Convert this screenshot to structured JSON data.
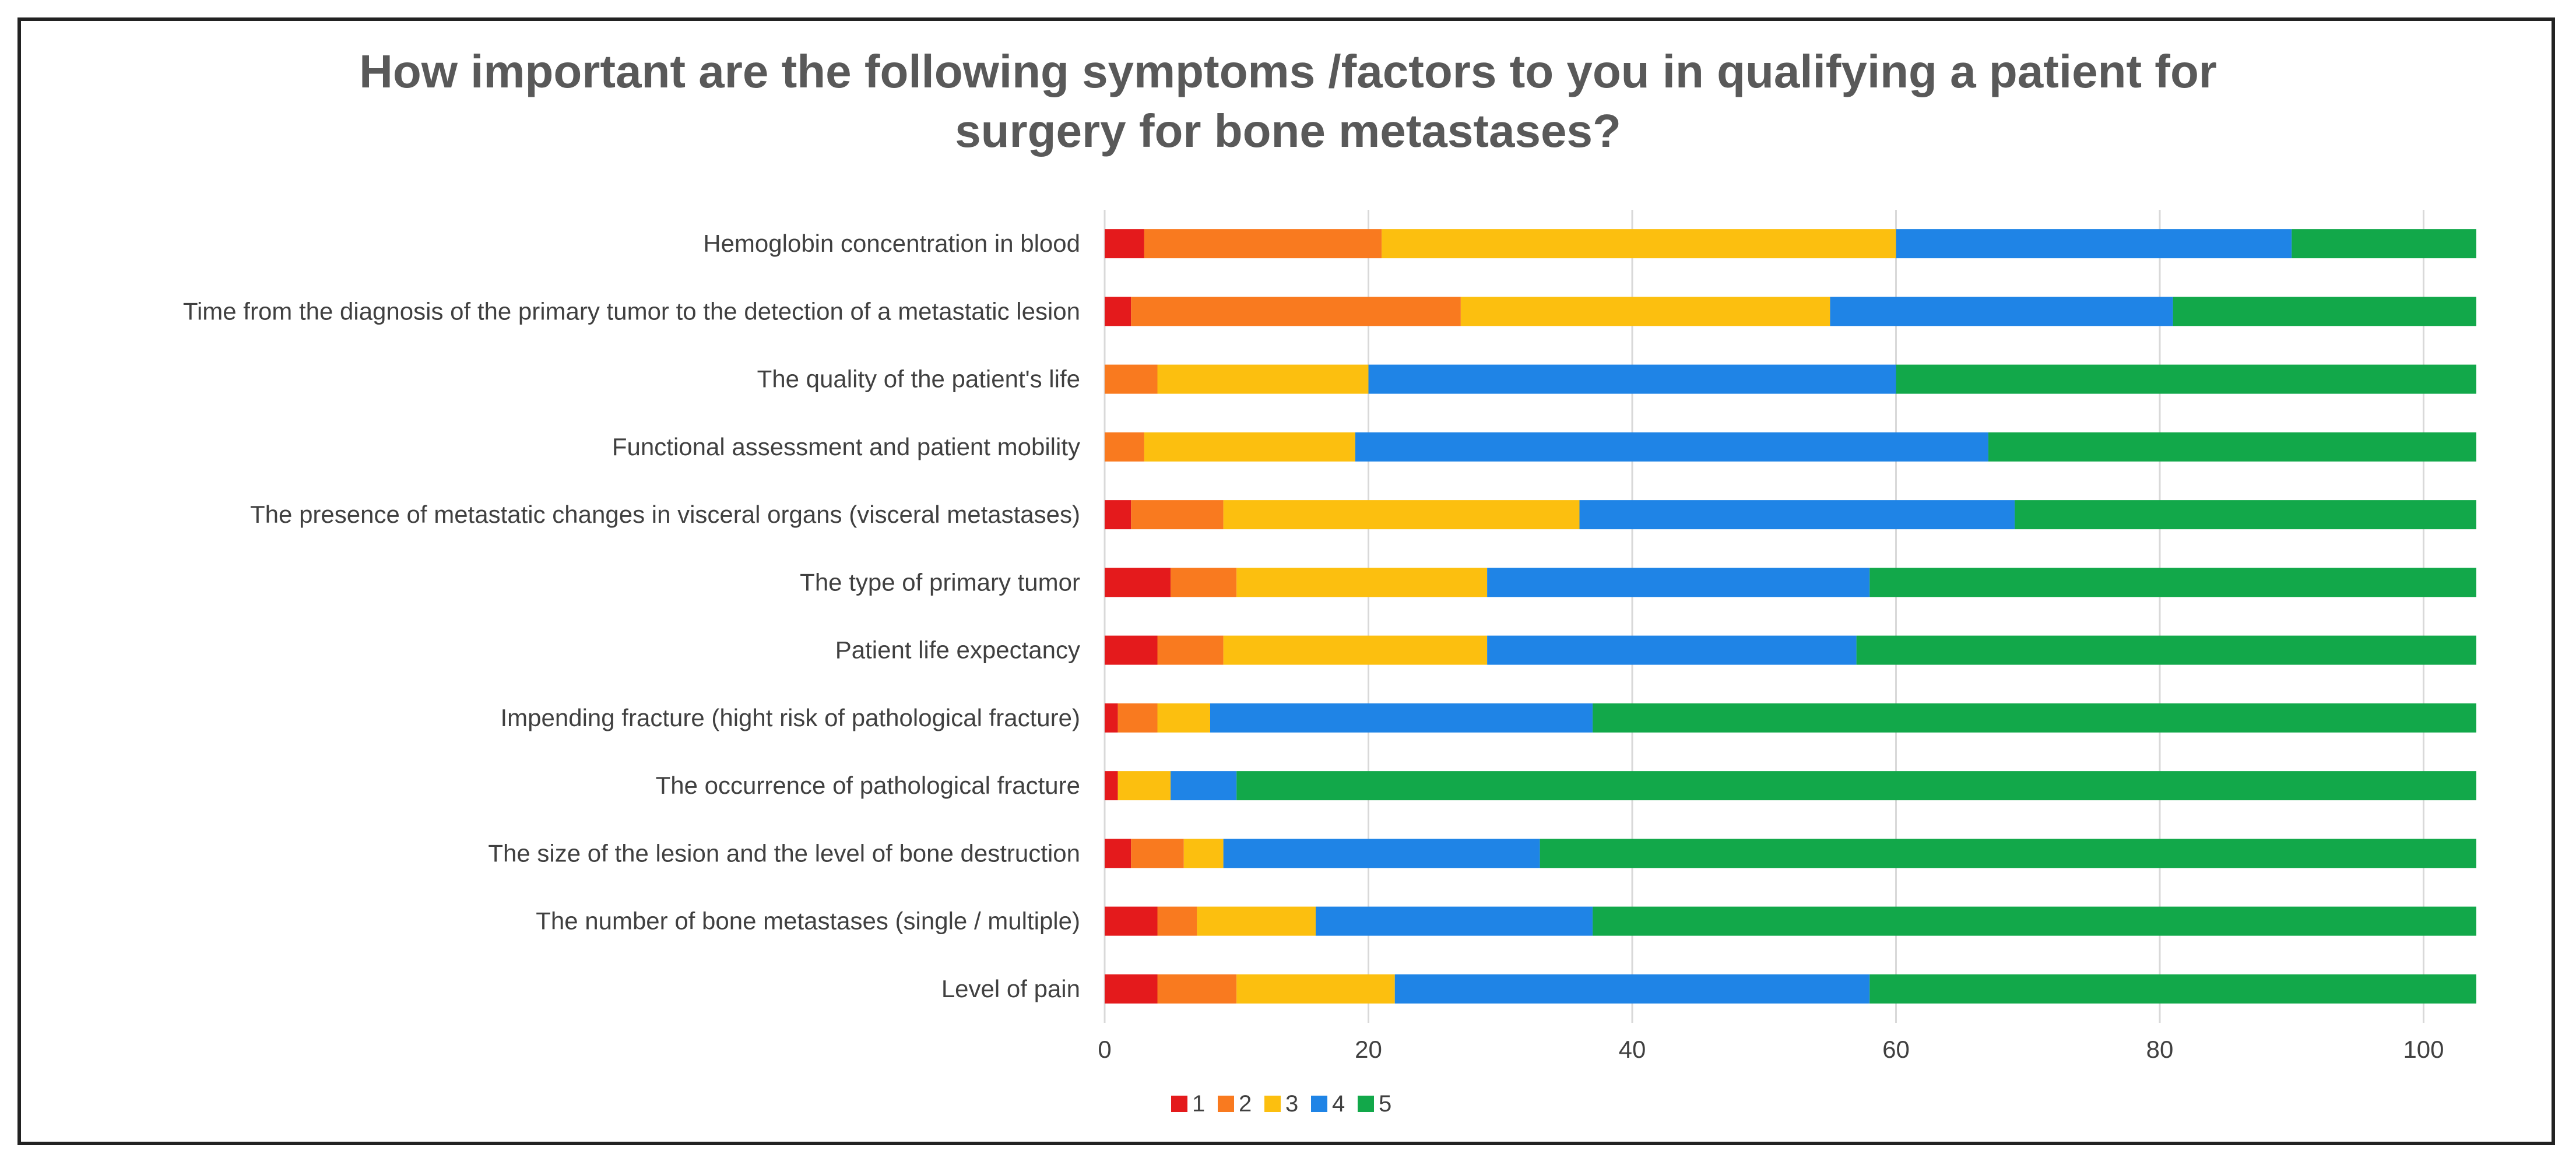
{
  "chart_data": {
    "type": "bar",
    "orientation": "horizontal",
    "stacked": true,
    "title_lines": [
      "How important are the following  symptoms /factors to you in qualifying  a patient for",
      "surgery for bone metastases?"
    ],
    "categories": [
      "Hemoglobin concentration in blood",
      "Time from the diagnosis of the primary tumor to the detection of a metastatic lesion",
      "The quality of the patient's life",
      "Functional assessment and patient mobility",
      "The presence of metastatic changes in visceral organs (visceral metastases)",
      "The type of primary tumor",
      "Patient life expectancy",
      "Impending fracture (hight risk of pathological fracture)",
      "The occurrence of pathological fracture",
      "The size of the lesion and the level of bone destruction",
      "The number of bone metastases (single / multiple)",
      "Level of pain"
    ],
    "series": [
      {
        "name": "1",
        "color": "#e41a1c",
        "values": [
          3,
          2,
          0,
          0,
          2,
          5,
          4,
          1,
          1,
          2,
          4,
          4
        ]
      },
      {
        "name": "2",
        "color": "#f97a1f",
        "values": [
          18,
          25,
          4,
          3,
          7,
          5,
          5,
          3,
          0,
          4,
          3,
          6
        ]
      },
      {
        "name": "3",
        "color": "#fcbf0f",
        "values": [
          39,
          28,
          16,
          16,
          27,
          19,
          20,
          4,
          4,
          3,
          9,
          12
        ]
      },
      {
        "name": "4",
        "color": "#1f84e6",
        "values": [
          30,
          26,
          40,
          48,
          33,
          29,
          28,
          29,
          5,
          24,
          21,
          36
        ]
      },
      {
        "name": "5",
        "color": "#12a84a",
        "values": [
          14,
          23,
          44,
          37,
          35,
          46,
          47,
          67,
          94,
          71,
          67,
          46
        ]
      }
    ],
    "xlim": [
      0,
      104
    ],
    "xticks": [
      "0",
      "20",
      "40",
      "60",
      "80",
      "100"
    ],
    "grid": true,
    "legend_position": "bottom-center"
  }
}
